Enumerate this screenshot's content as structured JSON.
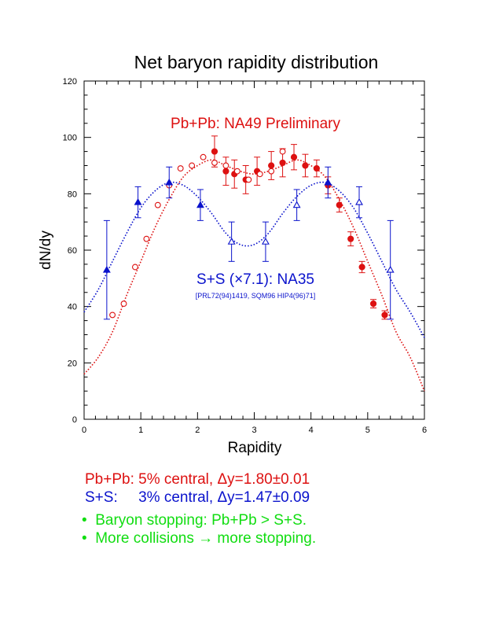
{
  "chart_data": {
    "type": "scatter",
    "title": "Net baryon rapidity distribution",
    "xlabel": "Rapidity",
    "ylabel": "dN/dy",
    "xlim": [
      0,
      6
    ],
    "ylim": [
      0,
      120
    ],
    "xticks": [
      "0",
      "1",
      "2",
      "3",
      "4",
      "5",
      "6"
    ],
    "yticks": [
      "0",
      "20",
      "40",
      "60",
      "80",
      "100",
      "120"
    ],
    "grid": false,
    "annotations": {
      "pbpb": "Pb+Pb: NA49 Preliminary",
      "ss": "S+S (×7.1): NA35",
      "ss_ref": "[PRL72(94)1419, SQM96 HIP4(96)71]"
    },
    "series": [
      {
        "label": "pbpb-filled",
        "color": "#dd1111",
        "marker": "filled-circle",
        "x": [
          2.3,
          2.5,
          2.65,
          2.85,
          3.05,
          3.3,
          3.5,
          3.7,
          3.9,
          4.1,
          4.3,
          4.5,
          4.7,
          4.9,
          5.1,
          5.3
        ],
        "y": [
          95,
          88,
          87,
          85,
          88,
          90,
          91,
          93,
          90,
          89,
          83,
          76,
          64,
          54,
          41,
          37
        ],
        "err": [
          5.5,
          5,
          5,
          5,
          5,
          5,
          5,
          4.5,
          4,
          3,
          3,
          2.5,
          2.5,
          2,
          1.5,
          1.5
        ]
      },
      {
        "label": "pbpb-open",
        "color": "#dd1111",
        "marker": "open-circle",
        "x": [
          0.5,
          0.7,
          0.9,
          1.1,
          1.3,
          1.5,
          1.7,
          1.9,
          2.1,
          2.3,
          2.5,
          2.7,
          2.9,
          3.1,
          3.3,
          3.5
        ],
        "y": [
          37,
          41,
          54,
          64,
          76,
          83,
          89,
          90,
          93,
          91,
          90,
          88,
          85,
          87,
          88,
          95
        ],
        "err": [
          0,
          0,
          0,
          0,
          0,
          0,
          0,
          0,
          0,
          0,
          0,
          0,
          0,
          0,
          0,
          0
        ]
      },
      {
        "label": "ss-filled",
        "color": "#0a12cc",
        "marker": "filled-triangle",
        "x": [
          0.4,
          0.95,
          1.5,
          2.05,
          4.3
        ],
        "y": [
          53,
          77,
          84,
          76,
          84
        ],
        "err": [
          17.5,
          5.5,
          5.5,
          5.5,
          5.5
        ]
      },
      {
        "label": "ss-open",
        "color": "#0a12cc",
        "marker": "open-triangle",
        "x": [
          2.6,
          3.2,
          3.75,
          4.85,
          5.4
        ],
        "y": [
          63,
          63,
          76,
          77,
          53
        ],
        "err": [
          7,
          7,
          5.5,
          5.5,
          17.5
        ]
      }
    ],
    "fits": [
      {
        "label": "pbpb-fit",
        "color": "#dd1111",
        "x": [
          0.0,
          0.25,
          0.5,
          0.75,
          1.0,
          1.25,
          1.5,
          1.75,
          2.0,
          2.25,
          2.5,
          2.75,
          3.0,
          3.25,
          3.5,
          3.75,
          4.0,
          4.25,
          4.5,
          4.75,
          5.0,
          5.25,
          5.5,
          5.75,
          6.0
        ],
        "y": [
          16,
          22,
          31,
          44,
          56,
          68,
          78,
          86,
          90,
          92,
          90,
          88,
          87,
          88,
          90,
          92,
          90,
          86,
          78,
          68,
          56,
          44,
          31,
          22,
          10
        ]
      },
      {
        "label": "ss-fit",
        "color": "#0a12cc",
        "x": [
          0.0,
          0.25,
          0.5,
          0.75,
          1.0,
          1.25,
          1.5,
          1.75,
          2.0,
          2.25,
          2.5,
          2.75,
          3.0,
          3.25,
          3.5,
          3.75,
          4.0,
          4.25,
          4.5,
          4.75,
          5.0,
          5.25,
          5.5,
          5.75,
          6.0
        ],
        "y": [
          38,
          46,
          56,
          66,
          75,
          81,
          84,
          83,
          79,
          73,
          66,
          62,
          62,
          66,
          73,
          79,
          83,
          84,
          81,
          75,
          66,
          56,
          46,
          38,
          29
        ]
      }
    ]
  },
  "notes": {
    "pbpb_line": "Pb+Pb: 5% central, Δy=1.80±0.01",
    "ss_line": "S+S:     3% central, Δy=1.47±0.09",
    "bullet1": "•  Baryon stopping: Pb+Pb > S+S.",
    "bullet2": "•  More collisions → more stopping."
  }
}
